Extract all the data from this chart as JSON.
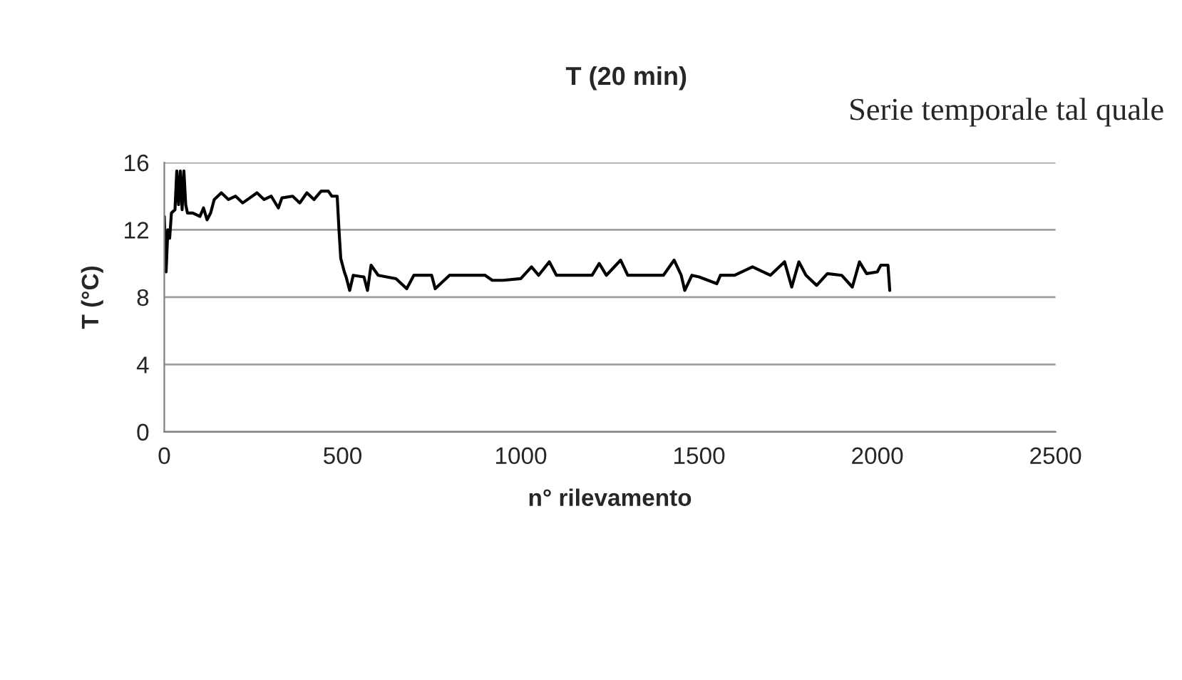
{
  "chart_data": {
    "type": "line",
    "title": "T (20 min)",
    "xlabel": "n° rilevamento",
    "ylabel": "T (°C)",
    "annotations": [
      "Serie temporale tal quale"
    ],
    "xlim": [
      0,
      2500
    ],
    "xticks": [
      0,
      500,
      1000,
      1500,
      2000,
      2500
    ],
    "ylim": [
      0,
      16
    ],
    "yticks": [
      0,
      4,
      8,
      12,
      16
    ],
    "grid": "y",
    "marker": "none",
    "line_style": "solid",
    "series": [
      {
        "color": "#000000",
        "x": [
          0,
          5,
          10,
          15,
          20,
          30,
          35,
          40,
          45,
          50,
          55,
          60,
          65,
          80,
          100,
          110,
          120,
          130,
          140,
          160,
          180,
          200,
          220,
          240,
          260,
          280,
          300,
          320,
          330,
          360,
          380,
          400,
          420,
          440,
          460,
          470,
          485,
          490,
          495,
          505,
          510,
          520,
          530,
          560,
          570,
          580,
          600,
          650,
          680,
          700,
          750,
          760,
          800,
          900,
          920,
          950,
          1000,
          1030,
          1050,
          1080,
          1100,
          1200,
          1220,
          1240,
          1280,
          1300,
          1400,
          1430,
          1450,
          1460,
          1480,
          1500,
          1550,
          1560,
          1600,
          1650,
          1700,
          1740,
          1760,
          1780,
          1800,
          1830,
          1860,
          1900,
          1930,
          1950,
          1970,
          2000,
          2010,
          2030,
          2035
        ],
        "values": [
          12.8,
          9.5,
          12,
          11.5,
          13,
          13.2,
          15.5,
          13.5,
          15.5,
          13.2,
          15.5,
          13.5,
          13,
          13,
          12.8,
          13.3,
          12.6,
          13,
          13.8,
          14.2,
          13.8,
          14,
          13.6,
          13.9,
          14.2,
          13.8,
          14,
          13.3,
          13.9,
          14,
          13.6,
          14.2,
          13.8,
          14.3,
          14.3,
          14,
          14,
          12,
          10.3,
          9.5,
          9.2,
          8.4,
          9.3,
          9.2,
          8.4,
          9.9,
          9.3,
          9.1,
          8.5,
          9.3,
          9.3,
          8.5,
          9.3,
          9.3,
          9.0,
          9.0,
          9.1,
          9.8,
          9.3,
          10.1,
          9.3,
          9.3,
          10.0,
          9.3,
          10.2,
          9.3,
          9.3,
          10.2,
          9.3,
          8.4,
          9.3,
          9.2,
          8.8,
          9.3,
          9.3,
          9.8,
          9.3,
          10.1,
          8.6,
          10.1,
          9.3,
          8.7,
          9.4,
          9.3,
          8.6,
          10.1,
          9.4,
          9.5,
          9.9,
          9.9,
          8.4
        ]
      }
    ]
  }
}
